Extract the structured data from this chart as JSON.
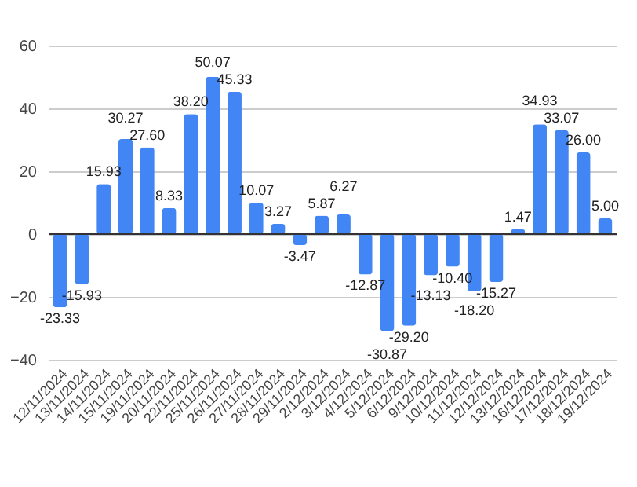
{
  "chart_data": {
    "type": "bar",
    "categories": [
      "12/11/2024",
      "13/11/2024",
      "14/11/2024",
      "15/11/2024",
      "19/11/2024",
      "20/11/2024",
      "22/11/2024",
      "25/11/2024",
      "26/11/2024",
      "27/11/2024",
      "28/11/2024",
      "29/11/2024",
      "2/12/2024",
      "3/12/2024",
      "4/12/2024",
      "5/12/2024",
      "6/12/2024",
      "9/12/2024",
      "10/12/2024",
      "11/12/2024",
      "12/12/2024",
      "13/12/2024",
      "16/12/2024",
      "17/12/2024",
      "18/12/2024",
      "19/12/2024"
    ],
    "values": [
      -23.33,
      -15.93,
      15.93,
      30.27,
      27.6,
      8.33,
      38.2,
      50.07,
      45.33,
      10.07,
      3.27,
      -3.47,
      5.87,
      6.27,
      -12.87,
      -30.87,
      -29.2,
      -13.13,
      -10.4,
      -18.2,
      -15.27,
      1.47,
      34.93,
      33.07,
      26,
      5
    ],
    "value_labels": [
      "-23.33",
      "-15.93",
      "15.93",
      "30.27",
      "27.60",
      "8.33",
      "38.20",
      "50.07",
      "45.33",
      "10.07",
      "3.27",
      "-3.47",
      "5.87",
      "6.27",
      "-12.87",
      "-30.87",
      "-29.20",
      "-13.13",
      "-10.40",
      "-18.20",
      "-15.27",
      "1.47",
      "34.93",
      "33.07",
      "26.00",
      "5.00"
    ],
    "color": "#4285f4",
    "ylim": [
      -40,
      60
    ],
    "yticks": [
      -40,
      -20,
      0,
      20,
      40,
      60
    ],
    "grid": "y"
  }
}
